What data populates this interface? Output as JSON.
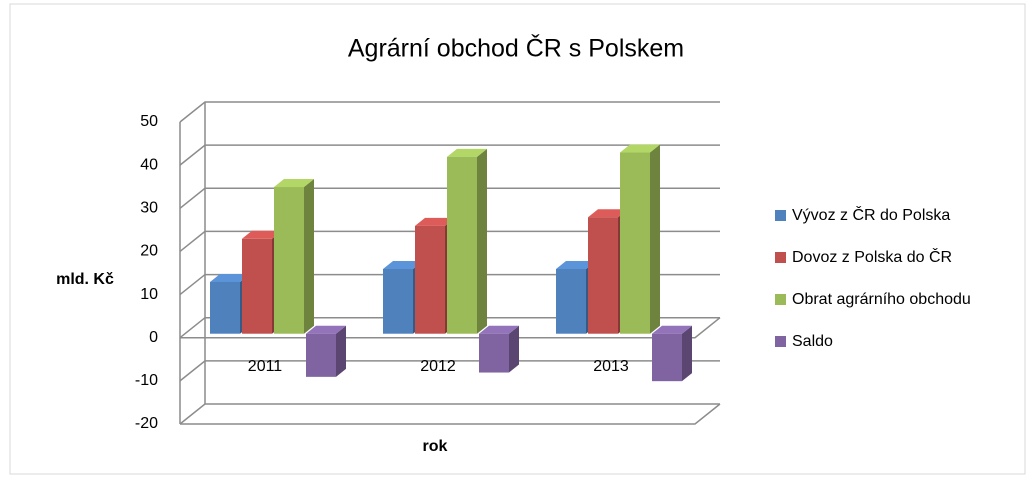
{
  "chart_data": {
    "type": "bar3d",
    "title": "Agrární obchod ČR s Polskem",
    "xlabel": "rok",
    "ylabel": "mld. Kč",
    "categories": [
      "2011",
      "2012",
      "2013"
    ],
    "series": [
      {
        "name": "Vývoz z ČR do Polska",
        "color": "#4f81bd",
        "values": [
          12,
          15,
          15
        ]
      },
      {
        "name": "Dovoz z Polska do ČR",
        "color": "#c0504d",
        "values": [
          22,
          25,
          27
        ]
      },
      {
        "name": "Obrat agrárního obchodu",
        "color": "#9bbb59",
        "values": [
          34,
          41,
          42
        ]
      },
      {
        "name": "Saldo",
        "color": "#8064a2",
        "values": [
          -10,
          -9,
          -11
        ]
      }
    ],
    "ylim": [
      -20,
      50
    ],
    "yticks": [
      -20,
      -10,
      0,
      10,
      20,
      30,
      40,
      50
    ],
    "grid": true,
    "legend": "right"
  }
}
